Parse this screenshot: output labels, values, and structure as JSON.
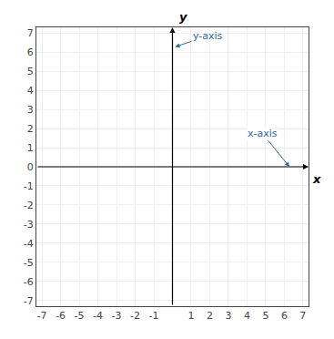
{
  "chart_data": {
    "type": "plane",
    "xlabel": "x",
    "ylabel": "y",
    "annotations": [
      {
        "text": "x-axis",
        "color": "#336699"
      },
      {
        "text": "y-axis",
        "color": "#336699"
      }
    ],
    "xlim": [
      -7.3,
      7.3
    ],
    "ylim": [
      -7.3,
      7.3
    ],
    "xticks": [
      -7,
      -6,
      -5,
      -4,
      -3,
      -2,
      -1,
      1,
      2,
      3,
      4,
      5,
      6,
      7
    ],
    "yticks": [
      -7,
      -6,
      -5,
      -4,
      -3,
      -2,
      -1,
      0,
      1,
      2,
      3,
      4,
      5,
      6,
      7
    ],
    "grid": true
  }
}
